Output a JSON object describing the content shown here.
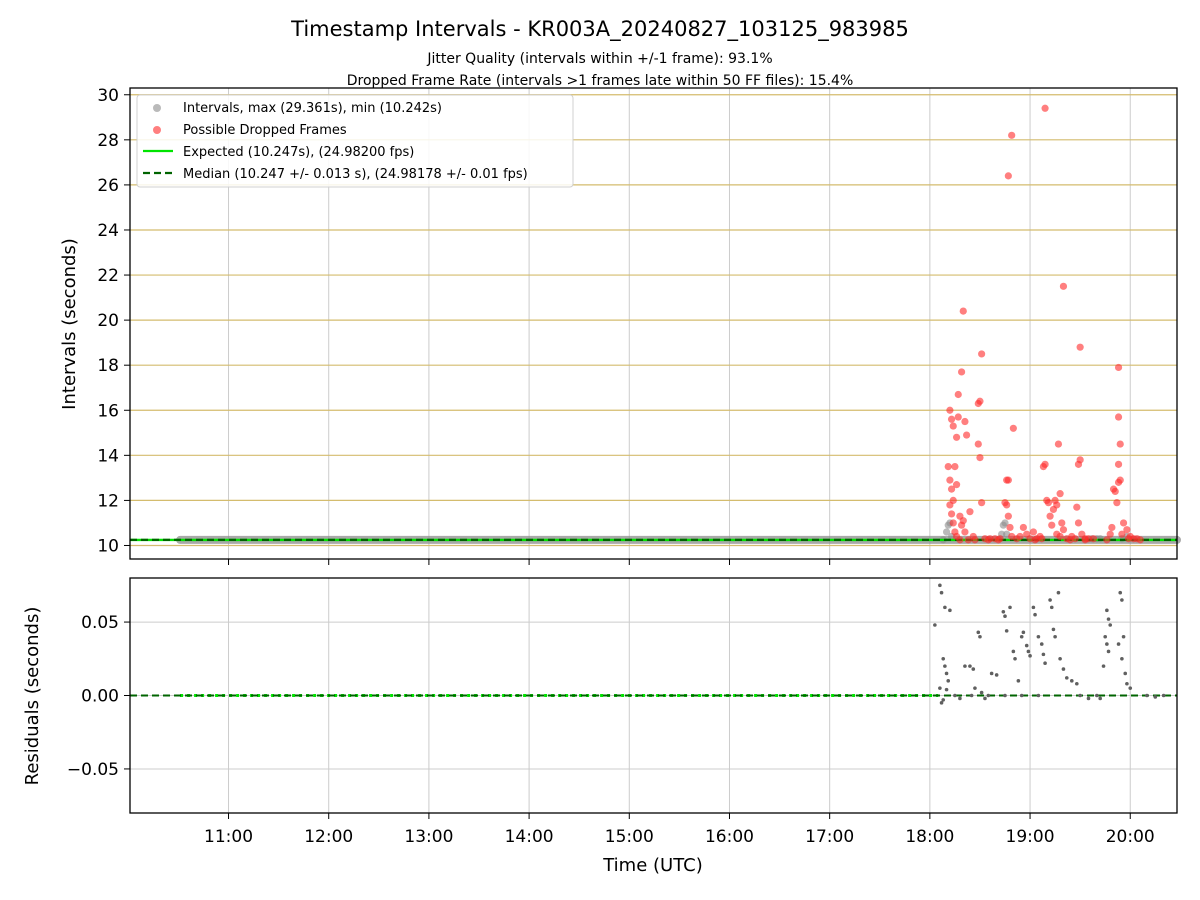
{
  "figure": {
    "title": "Timestamp Intervals - KR003A_20240827_103125_983985",
    "subtitle_1": "Jitter Quality (intervals within +/-1 frame): 93.1%",
    "subtitle_2": "Dropped Frame Rate (intervals >1 frames late within 50 FF files): 15.4%"
  },
  "colors": {
    "intervals": "#8c8c8c",
    "dropped": "#ff2a2a",
    "expected": "#00e400",
    "median": "#006400",
    "residuals": "#606060",
    "hgrid_top": "#d4bc6e",
    "grid": "#cccccc"
  },
  "chart_data": [
    {
      "type": "scatter",
      "panel": "top",
      "ylabel": "Intervals (seconds)",
      "ylim": [
        9.4,
        30.3
      ],
      "xlim": [
        "10:01",
        "20:28"
      ],
      "yticks": [
        "10",
        "12",
        "14",
        "16",
        "18",
        "20",
        "22",
        "24",
        "26",
        "28",
        "30"
      ],
      "grid": true,
      "legend_placement": "top-left",
      "legend": [
        "Intervals, max (29.361s), min (10.242s)",
        "Possible Dropped Frames",
        "Expected (10.247s), (24.98200 fps)",
        "Median (10.247 +/- 0.013 s), (24.98178 +/- 0.01 fps)"
      ],
      "series": [
        {
          "name": "Intervals, max (29.361s), min (10.242s)",
          "kind": "points",
          "note_range": {
            "x_start": "10:31",
            "x_end": "20:28",
            "y": 10.247
          },
          "points": [
            [
              "18:08",
              10.25
            ],
            [
              "18:10",
              10.6
            ],
            [
              "18:11",
              10.9
            ],
            [
              "18:12",
              11.0
            ],
            [
              "18:13",
              10.4
            ],
            [
              "18:43",
              10.5
            ],
            [
              "18:44",
              10.9
            ],
            [
              "18:45",
              11.0
            ],
            [
              "18:46",
              10.5
            ],
            [
              "19:37",
              10.3
            ],
            [
              "19:40",
              10.3
            ],
            [
              "19:42",
              10.3
            ],
            [
              "19:55",
              10.3
            ],
            [
              "19:58",
              10.4
            ]
          ]
        },
        {
          "name": "Possible Dropped Frames",
          "kind": "points",
          "points": [
            [
              "18:12",
              16.0
            ],
            [
              "18:13",
              15.6
            ],
            [
              "18:14",
              15.3
            ],
            [
              "18:16",
              14.8
            ],
            [
              "18:17",
              15.7
            ],
            [
              "18:11",
              13.5
            ],
            [
              "18:15",
              13.5
            ],
            [
              "18:16",
              12.7
            ],
            [
              "18:13",
              12.5
            ],
            [
              "18:12",
              12.9
            ],
            [
              "18:14",
              12.0
            ],
            [
              "18:18",
              11.3
            ],
            [
              "18:19",
              10.9
            ],
            [
              "18:20",
              11.1
            ],
            [
              "18:21",
              10.6
            ],
            [
              "18:12",
              11.8
            ],
            [
              "18:13",
              11.4
            ],
            [
              "18:14",
              11.0
            ],
            [
              "18:15",
              10.6
            ],
            [
              "18:16",
              10.4
            ],
            [
              "18:17",
              16.7
            ],
            [
              "18:19",
              17.7
            ],
            [
              "18:20",
              20.4
            ],
            [
              "18:22",
              14.9
            ],
            [
              "18:21",
              15.5
            ],
            [
              "18:24",
              11.5
            ],
            [
              "18:26",
              10.4
            ],
            [
              "18:29",
              16.3
            ],
            [
              "18:30",
              16.4
            ],
            [
              "18:31",
              18.5
            ],
            [
              "18:29",
              14.5
            ],
            [
              "18:30",
              13.9
            ],
            [
              "18:31",
              11.9
            ],
            [
              "18:33",
              10.3
            ],
            [
              "18:36",
              10.3
            ],
            [
              "18:39",
              10.3
            ],
            [
              "18:42",
              10.3
            ],
            [
              "18:45",
              11.9
            ],
            [
              "18:46",
              12.9
            ],
            [
              "18:47",
              12.9
            ],
            [
              "18:46",
              11.8
            ],
            [
              "18:47",
              11.3
            ],
            [
              "18:48",
              10.8
            ],
            [
              "18:49",
              10.4
            ],
            [
              "18:47",
              26.4
            ],
            [
              "18:49",
              28.2
            ],
            [
              "18:50",
              15.2
            ],
            [
              "18:52",
              10.3
            ],
            [
              "18:54",
              10.4
            ],
            [
              "18:56",
              10.8
            ],
            [
              "18:58",
              10.5
            ],
            [
              "19:00",
              10.3
            ],
            [
              "19:02",
              10.6
            ],
            [
              "19:04",
              10.3
            ],
            [
              "19:06",
              10.4
            ],
            [
              "19:07",
              10.3
            ],
            [
              "19:08",
              13.5
            ],
            [
              "19:09",
              13.6
            ],
            [
              "19:10",
              12.0
            ],
            [
              "19:11",
              11.9
            ],
            [
              "19:12",
              11.3
            ],
            [
              "19:13",
              10.9
            ],
            [
              "19:09",
              29.4
            ],
            [
              "19:14",
              11.6
            ],
            [
              "19:15",
              12.0
            ],
            [
              "19:16",
              11.8
            ],
            [
              "19:17",
              14.5
            ],
            [
              "19:18",
              12.3
            ],
            [
              "19:19",
              11.0
            ],
            [
              "19:20",
              10.7
            ],
            [
              "19:16",
              10.5
            ],
            [
              "19:18",
              10.4
            ],
            [
              "19:20",
              21.5
            ],
            [
              "19:22",
              10.3
            ],
            [
              "19:25",
              10.4
            ],
            [
              "19:27",
              10.3
            ],
            [
              "19:28",
              11.7
            ],
            [
              "19:29",
              13.6
            ],
            [
              "19:30",
              13.8
            ],
            [
              "19:30",
              18.8
            ],
            [
              "19:29",
              11.0
            ],
            [
              "19:31",
              10.5
            ],
            [
              "19:33",
              10.3
            ],
            [
              "19:35",
              10.3
            ],
            [
              "19:38",
              10.3
            ],
            [
              "19:48",
              10.5
            ],
            [
              "19:49",
              10.8
            ],
            [
              "19:50",
              12.5
            ],
            [
              "19:51",
              12.4
            ],
            [
              "19:52",
              11.9
            ],
            [
              "19:53",
              12.8
            ],
            [
              "19:54",
              12.9
            ],
            [
              "19:53",
              13.6
            ],
            [
              "19:54",
              14.5
            ],
            [
              "19:53",
              15.7
            ],
            [
              "19:53",
              17.9
            ],
            [
              "19:55",
              10.5
            ],
            [
              "19:56",
              11.0
            ],
            [
              "19:58",
              10.7
            ],
            [
              "20:00",
              10.4
            ],
            [
              "20:02",
              10.3
            ],
            [
              "20:04",
              10.3
            ],
            [
              "19:59",
              10.3
            ],
            [
              "18:18",
              10.25
            ],
            [
              "18:23",
              10.25
            ],
            [
              "18:27",
              10.25
            ],
            [
              "18:35",
              10.25
            ],
            [
              "18:41",
              10.25
            ],
            [
              "19:03",
              10.25
            ],
            [
              "19:24",
              10.25
            ],
            [
              "19:33",
              10.25
            ],
            [
              "19:46",
              10.25
            ],
            [
              "20:06",
              10.25
            ]
          ]
        },
        {
          "name": "Expected (10.247s), (24.98200 fps)",
          "kind": "hline",
          "y": 10.247
        },
        {
          "name": "Median (10.247 +/- 0.013 s), (24.98178 +/- 0.01 fps)",
          "kind": "hline",
          "y": 10.247
        }
      ]
    },
    {
      "type": "scatter",
      "panel": "bottom",
      "xlabel": "Time (UTC)",
      "ylabel": "Residuals (seconds)",
      "ylim": [
        -0.08,
        0.08
      ],
      "xlim": [
        "10:01",
        "20:28"
      ],
      "xticks": [
        "11:00",
        "12:00",
        "13:00",
        "14:00",
        "15:00",
        "16:00",
        "17:00",
        "18:00",
        "19:00",
        "20:00"
      ],
      "yticks": [
        "0.05",
        "0.00",
        "−0.05"
      ],
      "grid": true,
      "series": [
        {
          "name": "",
          "kind": "points",
          "points": [
            [
              "18:03",
              0.048
            ],
            [
              "18:06",
              0.075
            ],
            [
              "18:07",
              0.07
            ],
            [
              "18:09",
              0.06
            ],
            [
              "18:12",
              0.058
            ],
            [
              "18:08",
              0.025
            ],
            [
              "18:09",
              0.02
            ],
            [
              "18:10",
              0.015
            ],
            [
              "18:11",
              0.01
            ],
            [
              "18:06",
              0.005
            ],
            [
              "18:07",
              -0.005
            ],
            [
              "18:08",
              -0.003
            ],
            [
              "18:10",
              0.004
            ],
            [
              "18:21",
              0.02
            ],
            [
              "18:24",
              0.02
            ],
            [
              "18:26",
              0.018
            ],
            [
              "18:29",
              0.043
            ],
            [
              "18:30",
              0.04
            ],
            [
              "18:27",
              0.005
            ],
            [
              "18:31",
              0.002
            ],
            [
              "18:37",
              0.015
            ],
            [
              "18:40",
              0.014
            ],
            [
              "18:44",
              0.057
            ],
            [
              "18:45",
              0.054
            ],
            [
              "18:46",
              0.044
            ],
            [
              "18:48",
              0.06
            ],
            [
              "18:50",
              0.03
            ],
            [
              "18:51",
              0.025
            ],
            [
              "18:53",
              0.01
            ],
            [
              "18:55",
              0.04
            ],
            [
              "18:56",
              0.043
            ],
            [
              "18:58",
              0.034
            ],
            [
              "18:59",
              0.03
            ],
            [
              "19:00",
              0.027
            ],
            [
              "19:02",
              0.06
            ],
            [
              "19:03",
              0.055
            ],
            [
              "19:05",
              0.04
            ],
            [
              "19:07",
              0.035
            ],
            [
              "19:08",
              0.028
            ],
            [
              "19:09",
              0.022
            ],
            [
              "19:12",
              0.065
            ],
            [
              "19:13",
              0.06
            ],
            [
              "19:14",
              0.045
            ],
            [
              "19:15",
              0.04
            ],
            [
              "19:17",
              0.07
            ],
            [
              "19:18",
              0.025
            ],
            [
              "19:20",
              0.018
            ],
            [
              "19:22",
              0.012
            ],
            [
              "19:25",
              0.01
            ],
            [
              "19:28",
              0.008
            ],
            [
              "19:46",
              0.058
            ],
            [
              "19:47",
              0.052
            ],
            [
              "19:48",
              0.048
            ],
            [
              "19:45",
              0.04
            ],
            [
              "19:46",
              0.035
            ],
            [
              "19:47",
              0.03
            ],
            [
              "19:44",
              0.02
            ],
            [
              "19:54",
              0.07
            ],
            [
              "19:55",
              0.065
            ],
            [
              "19:56",
              0.04
            ],
            [
              "19:53",
              0.035
            ],
            [
              "19:55",
              0.025
            ],
            [
              "19:57",
              0.015
            ],
            [
              "19:58",
              0.008
            ],
            [
              "20:00",
              0.005
            ],
            [
              "18:15",
              0.0
            ],
            [
              "18:25",
              0.0
            ],
            [
              "18:35",
              0.0
            ],
            [
              "18:45",
              0.0
            ],
            [
              "19:05",
              0.0
            ],
            [
              "19:30",
              0.0
            ],
            [
              "19:40",
              0.0
            ],
            [
              "20:10",
              0.0
            ],
            [
              "20:20",
              0.0
            ],
            [
              "18:55",
              0.0
            ],
            [
              "18:18",
              -0.002
            ],
            [
              "18:33",
              -0.002
            ],
            [
              "19:35",
              -0.002
            ],
            [
              "19:42",
              -0.002
            ],
            [
              "20:15",
              -0.001
            ]
          ]
        },
        {
          "name": "",
          "kind": "hline",
          "y": 0.0
        }
      ]
    }
  ]
}
